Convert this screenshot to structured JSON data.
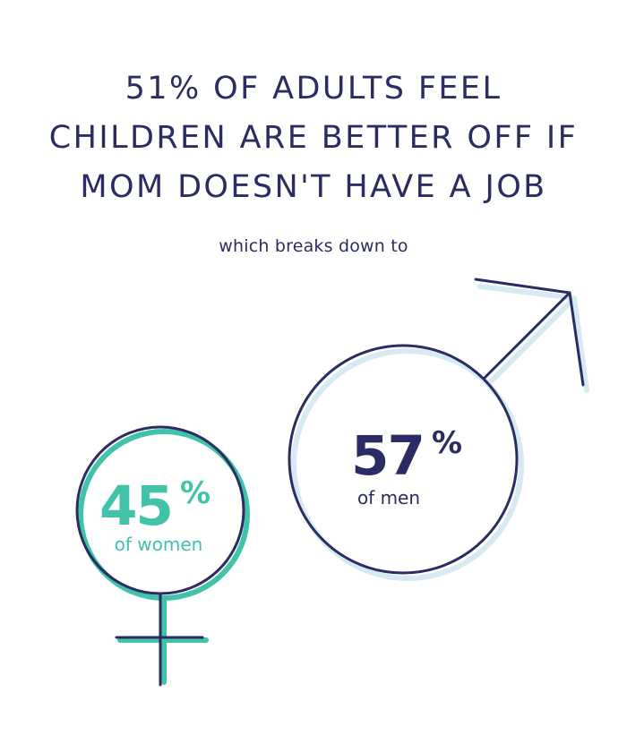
{
  "headline": {
    "lines": [
      "51% OF ADULTS FEEL",
      "CHILDREN ARE BETTER OFF IF",
      "MOM DOESN'T HAVE A JOB"
    ]
  },
  "subheading": "which breaks down to",
  "colors": {
    "navy": "#2b2c63",
    "teal": "#41c3a9",
    "shadow_blue": "#d6eaf3"
  },
  "icons": {
    "women": "female-symbol-icon",
    "men": "male-symbol-icon"
  },
  "chart_data": {
    "type": "other",
    "title": "51% OF ADULTS FEEL CHILDREN ARE BETTER OFF IF MOM DOESN'T HAVE A JOB",
    "subtitle": "which breaks down to",
    "overall": {
      "value": 51,
      "unit": "%"
    },
    "categories": [
      "of women",
      "of men"
    ],
    "values": [
      45,
      57
    ],
    "items": [
      {
        "number": "45",
        "unit": "%",
        "label": "of women",
        "value": 45,
        "color": "#41c3a9"
      },
      {
        "number": "57",
        "unit": "%",
        "label": "of men",
        "value": 57,
        "color": "#2b2c63"
      }
    ]
  }
}
